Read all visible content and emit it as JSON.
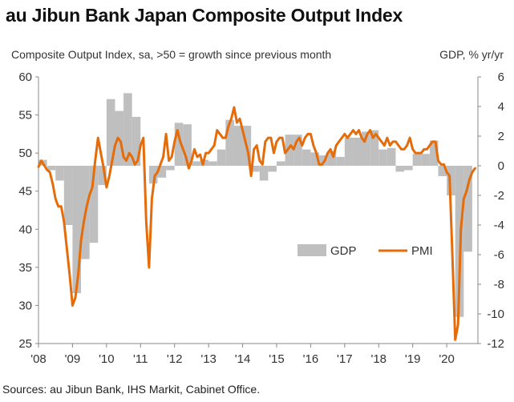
{
  "title": "au Jibun Bank Japan Composite Output Index",
  "subtitle_left": "Composite Output Index, sa, >50 = growth since previous month",
  "subtitle_right": "GDP, % yr/yr",
  "source": "Sources: au Jibun Bank, IHS Markit, Cabinet Office.",
  "colors": {
    "gdp": "#bfbfbf",
    "pmi": "#e46c0a",
    "axis": "#888888",
    "text": "#333333"
  },
  "chart_data": {
    "type": "line",
    "left_axis": {
      "min": 25,
      "max": 60,
      "ticks": [
        60,
        55,
        50,
        45,
        40,
        35,
        30,
        25
      ]
    },
    "right_axis": {
      "min": -12,
      "max": 6,
      "ticks": [
        6,
        4,
        2,
        0,
        -2,
        -4,
        -6,
        -8,
        -10,
        -12
      ]
    },
    "x_axis": {
      "start": 2008.0,
      "end": 2020.917,
      "tick_labels": [
        "'08",
        "'09",
        "'10",
        "'11",
        "'12",
        "'13",
        "'14",
        "'15",
        "'16",
        "'17",
        "'18",
        "'19",
        "'20"
      ]
    },
    "legend": {
      "gdp_label": "GDP",
      "pmi_label": "PMI",
      "position": "lower-right"
    },
    "gdp_series": {
      "name": "GDP",
      "axis": "right",
      "quarters": [
        [
          2008.0,
          0.4
        ],
        [
          2008.25,
          -0.3
        ],
        [
          2008.5,
          -1.0
        ],
        [
          2008.75,
          -4.0
        ],
        [
          2009.0,
          -8.6
        ],
        [
          2009.25,
          -6.3
        ],
        [
          2009.5,
          -5.2
        ],
        [
          2009.75,
          -1.3
        ],
        [
          2010.0,
          4.5
        ],
        [
          2010.25,
          3.7
        ],
        [
          2010.5,
          4.9
        ],
        [
          2010.75,
          3.3
        ],
        [
          2011.0,
          0.0
        ],
        [
          2011.25,
          -1.2
        ],
        [
          2011.5,
          -0.8
        ],
        [
          2011.75,
          -0.3
        ],
        [
          2012.0,
          2.9
        ],
        [
          2012.25,
          2.8
        ],
        [
          2012.5,
          0.3
        ],
        [
          2012.75,
          0.4
        ],
        [
          2013.0,
          0.3
        ],
        [
          2013.25,
          1.1
        ],
        [
          2013.5,
          3.1
        ],
        [
          2013.75,
          2.7
        ],
        [
          2014.0,
          2.7
        ],
        [
          2014.25,
          -0.4
        ],
        [
          2014.5,
          -1.0
        ],
        [
          2014.75,
          -0.4
        ],
        [
          2015.0,
          0.3
        ],
        [
          2015.25,
          2.1
        ],
        [
          2015.5,
          2.1
        ],
        [
          2015.75,
          1.1
        ],
        [
          2016.0,
          0.9
        ],
        [
          2016.25,
          0.7
        ],
        [
          2016.5,
          1.0
        ],
        [
          2016.75,
          0.6
        ],
        [
          2017.0,
          1.9
        ],
        [
          2017.25,
          1.9
        ],
        [
          2017.5,
          2.3
        ],
        [
          2017.75,
          2.4
        ],
        [
          2018.0,
          1.1
        ],
        [
          2018.25,
          1.2
        ],
        [
          2018.5,
          -0.4
        ],
        [
          2018.75,
          -0.3
        ],
        [
          2019.0,
          0.8
        ],
        [
          2019.25,
          0.8
        ],
        [
          2019.5,
          1.7
        ],
        [
          2019.75,
          -0.7
        ],
        [
          2020.0,
          -2.0
        ],
        [
          2020.25,
          -10.2
        ],
        [
          2020.5,
          -5.8
        ]
      ]
    },
    "pmi_series": {
      "name": "PMI",
      "axis": "left",
      "points": [
        [
          2008.0,
          48.2
        ],
        [
          2008.083,
          49.0
        ],
        [
          2008.167,
          48.4
        ],
        [
          2008.25,
          47.8
        ],
        [
          2008.333,
          47.5
        ],
        [
          2008.417,
          46.0
        ],
        [
          2008.5,
          44.0
        ],
        [
          2008.583,
          43.0
        ],
        [
          2008.667,
          43.0
        ],
        [
          2008.75,
          41.0
        ],
        [
          2008.833,
          37.5
        ],
        [
          2008.917,
          34.0
        ],
        [
          2009.0,
          30.0
        ],
        [
          2009.083,
          31.0
        ],
        [
          2009.167,
          34.0
        ],
        [
          2009.25,
          38.5
        ],
        [
          2009.333,
          41.0
        ],
        [
          2009.417,
          43.0
        ],
        [
          2009.5,
          44.5
        ],
        [
          2009.583,
          45.5
        ],
        [
          2009.667,
          49.0
        ],
        [
          2009.75,
          52.0
        ],
        [
          2009.833,
          50.0
        ],
        [
          2009.917,
          48.0
        ],
        [
          2010.0,
          45.5
        ],
        [
          2010.083,
          47.0
        ],
        [
          2010.167,
          49.0
        ],
        [
          2010.25,
          51.0
        ],
        [
          2010.333,
          52.0
        ],
        [
          2010.417,
          51.5
        ],
        [
          2010.5,
          49.5
        ],
        [
          2010.583,
          49.0
        ],
        [
          2010.667,
          50.0
        ],
        [
          2010.75,
          49.5
        ],
        [
          2010.833,
          48.5
        ],
        [
          2010.917,
          49.0
        ],
        [
          2011.0,
          51.0
        ],
        [
          2011.083,
          52.0
        ],
        [
          2011.167,
          41.0
        ],
        [
          2011.25,
          35.0
        ],
        [
          2011.333,
          44.0
        ],
        [
          2011.417,
          47.0
        ],
        [
          2011.5,
          47.5
        ],
        [
          2011.583,
          48.5
        ],
        [
          2011.667,
          49.5
        ],
        [
          2011.75,
          52.5
        ],
        [
          2011.833,
          49.0
        ],
        [
          2011.917,
          49.5
        ],
        [
          2012.0,
          51.5
        ],
        [
          2012.083,
          53.0
        ],
        [
          2012.167,
          51.5
        ],
        [
          2012.25,
          50.5
        ],
        [
          2012.333,
          49.5
        ],
        [
          2012.417,
          48.0
        ],
        [
          2012.5,
          49.0
        ],
        [
          2012.583,
          50.5
        ],
        [
          2012.667,
          49.5
        ],
        [
          2012.75,
          49.8
        ],
        [
          2012.833,
          48.5
        ],
        [
          2012.917,
          50.0
        ],
        [
          2013.0,
          50.0
        ],
        [
          2013.083,
          50.5
        ],
        [
          2013.167,
          51.0
        ],
        [
          2013.25,
          53.0
        ],
        [
          2013.333,
          52.5
        ],
        [
          2013.417,
          52.0
        ],
        [
          2013.5,
          52.0
        ],
        [
          2013.583,
          53.5
        ],
        [
          2013.667,
          54.5
        ],
        [
          2013.75,
          56.0
        ],
        [
          2013.833,
          54.0
        ],
        [
          2013.917,
          54.5
        ],
        [
          2014.0,
          53.0
        ],
        [
          2014.083,
          51.5
        ],
        [
          2014.167,
          50.0
        ],
        [
          2014.25,
          47.0
        ],
        [
          2014.333,
          50.5
        ],
        [
          2014.417,
          51.0
        ],
        [
          2014.5,
          49.0
        ],
        [
          2014.583,
          48.5
        ],
        [
          2014.667,
          51.5
        ],
        [
          2014.75,
          52.0
        ],
        [
          2014.833,
          52.0
        ],
        [
          2014.917,
          50.0
        ],
        [
          2015.0,
          51.5
        ],
        [
          2015.083,
          52.0
        ],
        [
          2015.167,
          52.0
        ],
        [
          2015.25,
          50.0
        ],
        [
          2015.333,
          50.5
        ],
        [
          2015.417,
          51.0
        ],
        [
          2015.5,
          50.5
        ],
        [
          2015.583,
          51.5
        ],
        [
          2015.667,
          52.0
        ],
        [
          2015.75,
          51.0
        ],
        [
          2015.833,
          52.0
        ],
        [
          2015.917,
          52.5
        ],
        [
          2016.0,
          52.5
        ],
        [
          2016.083,
          51.0
        ],
        [
          2016.167,
          50.0
        ],
        [
          2016.25,
          48.5
        ],
        [
          2016.333,
          48.5
        ],
        [
          2016.417,
          49.0
        ],
        [
          2016.5,
          50.0
        ],
        [
          2016.583,
          50.5
        ],
        [
          2016.667,
          49.5
        ],
        [
          2016.75,
          51.0
        ],
        [
          2016.833,
          51.5
        ],
        [
          2016.917,
          52.0
        ],
        [
          2017.0,
          52.5
        ],
        [
          2017.083,
          52.0
        ],
        [
          2017.167,
          52.5
        ],
        [
          2017.25,
          53.0
        ],
        [
          2017.333,
          52.5
        ],
        [
          2017.417,
          53.0
        ],
        [
          2017.5,
          52.0
        ],
        [
          2017.583,
          51.5
        ],
        [
          2017.667,
          52.5
        ],
        [
          2017.75,
          53.0
        ],
        [
          2017.833,
          52.0
        ],
        [
          2017.917,
          52.5
        ],
        [
          2018.0,
          52.0
        ],
        [
          2018.083,
          51.5
        ],
        [
          2018.167,
          51.0
        ],
        [
          2018.25,
          52.0
        ],
        [
          2018.333,
          51.0
        ],
        [
          2018.417,
          51.5
        ],
        [
          2018.5,
          51.5
        ],
        [
          2018.583,
          51.0
        ],
        [
          2018.667,
          50.5
        ],
        [
          2018.75,
          50.5
        ],
        [
          2018.833,
          51.0
        ],
        [
          2018.917,
          52.0
        ],
        [
          2019.0,
          50.5
        ],
        [
          2019.083,
          50.0
        ],
        [
          2019.167,
          50.0
        ],
        [
          2019.25,
          50.0
        ],
        [
          2019.333,
          50.5
        ],
        [
          2019.417,
          50.5
        ],
        [
          2019.5,
          51.0
        ],
        [
          2019.583,
          51.5
        ],
        [
          2019.667,
          51.5
        ],
        [
          2019.75,
          49.0
        ],
        [
          2019.833,
          48.5
        ],
        [
          2019.917,
          48.5
        ],
        [
          2020.0,
          47.5
        ],
        [
          2020.083,
          47.0
        ],
        [
          2020.167,
          36.5
        ],
        [
          2020.25,
          25.5
        ],
        [
          2020.333,
          27.5
        ],
        [
          2020.417,
          40.0
        ],
        [
          2020.5,
          44.0
        ],
        [
          2020.583,
          45.0
        ],
        [
          2020.667,
          46.5
        ],
        [
          2020.75,
          47.5
        ],
        [
          2020.833,
          48.0
        ]
      ]
    }
  }
}
